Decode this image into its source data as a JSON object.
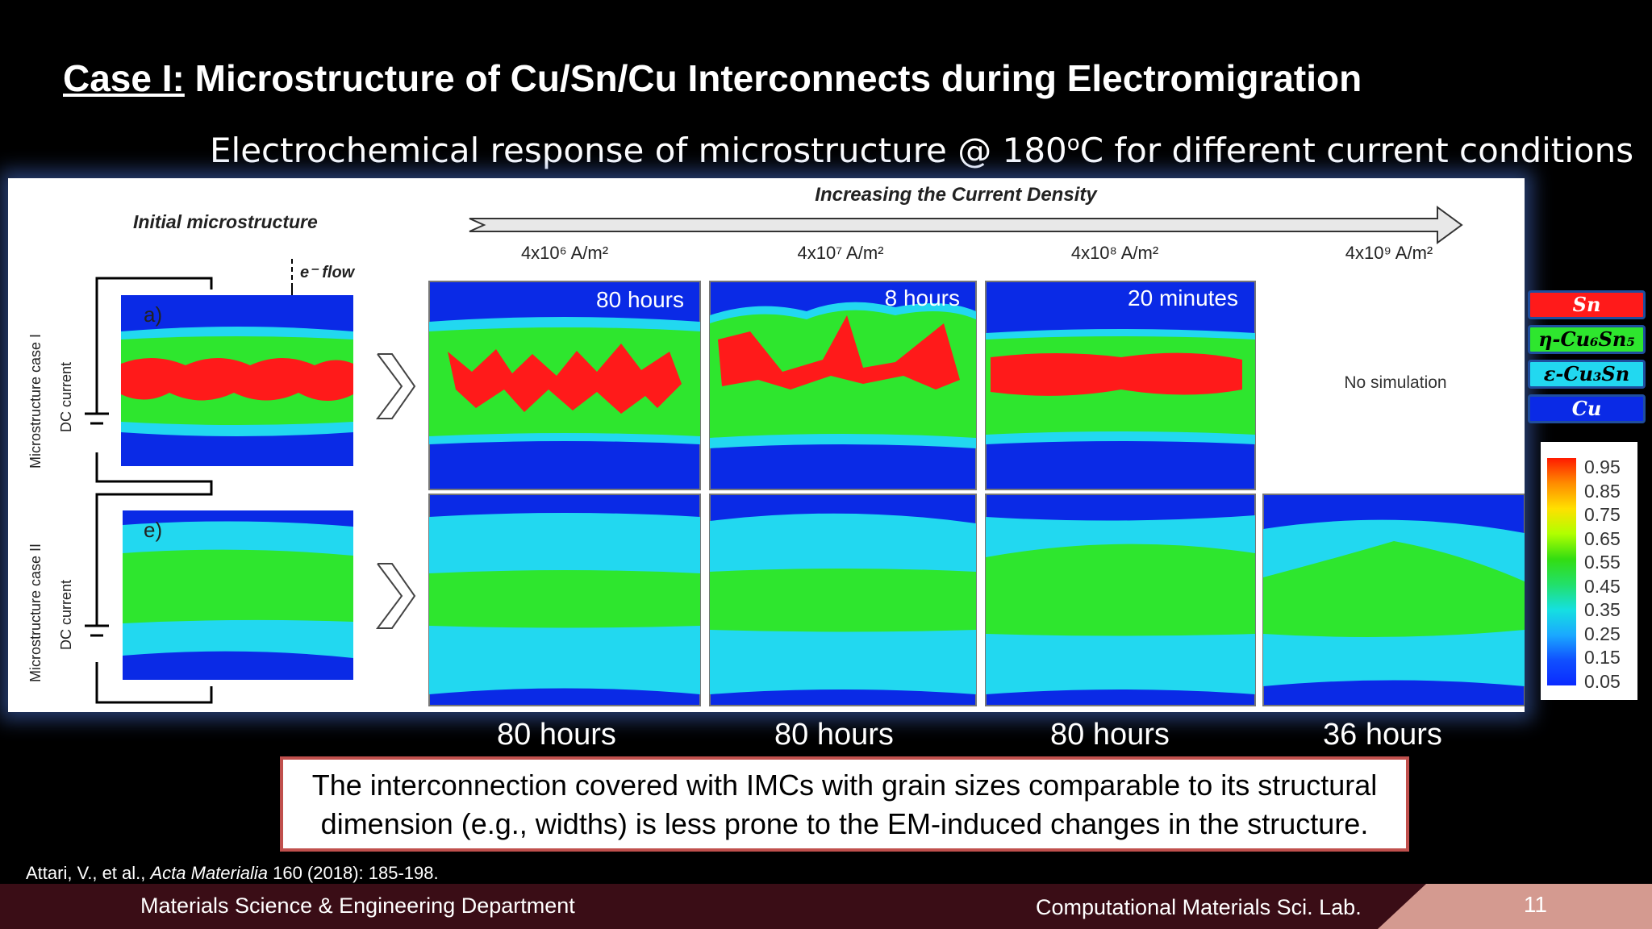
{
  "slide": {
    "title_case": "Case I:",
    "title_rest": " Microstructure of Cu/Sn/Cu Interconnects during Electromigration",
    "subtitle_pre": "Electrochemical response of microstructure @ 180",
    "subtitle_sup": "o",
    "subtitle_post": "C for different current conditions",
    "page_number": "11"
  },
  "figure": {
    "header": "Increasing the Current Density",
    "initial_label": "Initial microstructure",
    "flow_label": "e⁻ flow",
    "row1_label": "Microstructure case I",
    "row2_label": "Microstructure case II",
    "dc_label": "DC current",
    "panel_a": "a)",
    "panel_e": "e)",
    "current_densities": [
      "4x10⁶ A/m²",
      "4x10⁷ A/m²",
      "4x10⁸ A/m²",
      "4x10⁹ A/m²"
    ],
    "row1_times": [
      "80 hours",
      "8 hours",
      "20 minutes"
    ],
    "no_simulation": "No simulation",
    "row2_times": [
      "80 hours",
      "80 hours",
      "80 hours",
      "36 hours"
    ]
  },
  "phase_legend": [
    {
      "label": "Sn",
      "color": "#ff1a1a"
    },
    {
      "label": "η-Cu₆Sn₅",
      "color": "#2ee62e"
    },
    {
      "label": "ε-Cu₃Sn",
      "color": "#22d8f0"
    },
    {
      "label": "Cu",
      "color": "#0a2ae6"
    }
  ],
  "colorbar_ticks": [
    "0.95",
    "0.85",
    "0.75",
    "0.65",
    "0.55",
    "0.45",
    "0.35",
    "0.25",
    "0.15",
    "0.05"
  ],
  "conclusion": {
    "line1": "The interconnection covered with IMCs with grain sizes comparable to its structural",
    "line2": "dimension (e.g., widths) is less prone to the EM-induced changes in the structure."
  },
  "citation": {
    "authors": "Attari, V., et al., ",
    "journal": "Acta Materialia",
    "details": " 160 (2018): 185-198."
  },
  "footer": {
    "department": "Materials Science & Engineering Department",
    "lab": "Computational Materials Sci. Lab."
  },
  "colors": {
    "cu": "#0a2ae6",
    "eps": "#22d8f0",
    "eta": "#2ee62e",
    "sn": "#ff1a1a",
    "accent_box": "#c0504d",
    "footer": "#3a0d16"
  }
}
